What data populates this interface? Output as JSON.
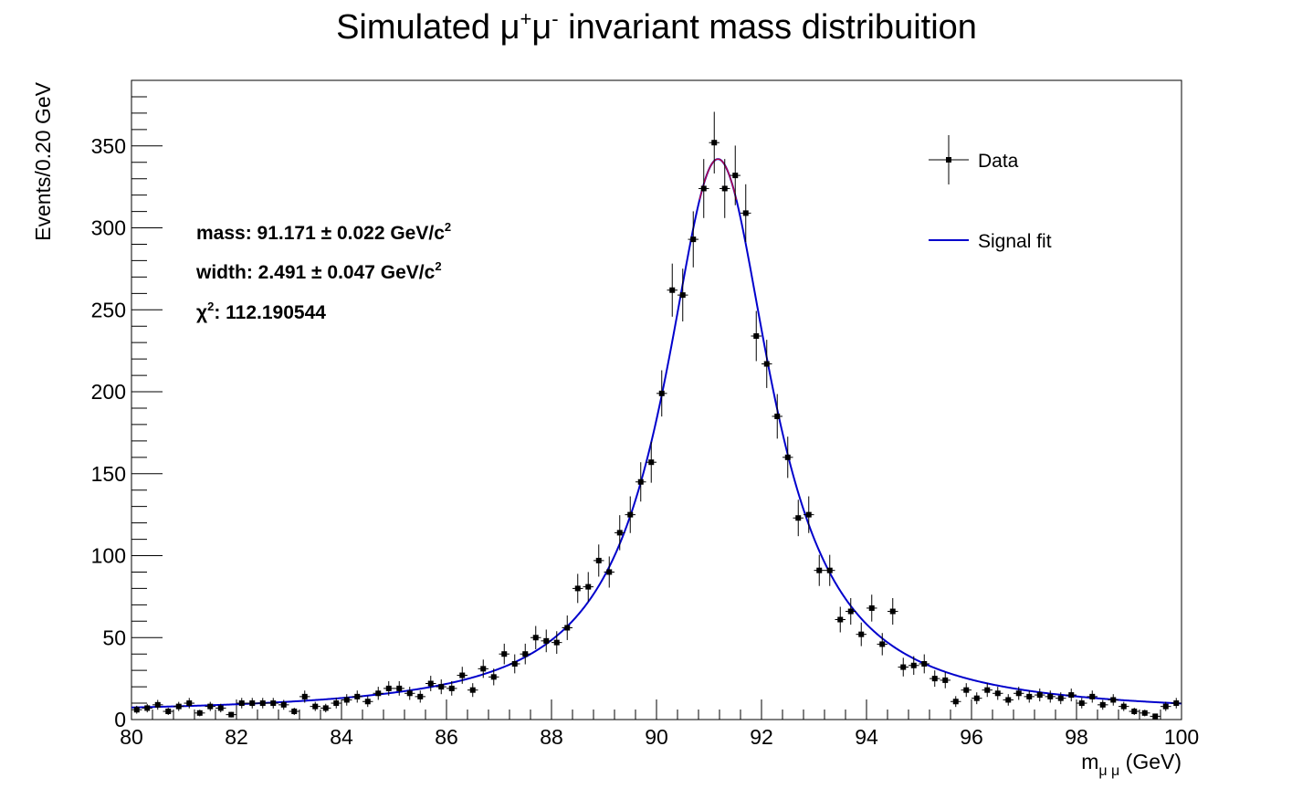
{
  "chart_data": {
    "type": "scatter",
    "title": {
      "main": "Simulated μ",
      "sup1": "+",
      "mid": "μ",
      "sup2": "-",
      "end": " invariant mass distribuition"
    },
    "xlabel": {
      "main": "m",
      "sub": "μ μ",
      "unit": " (GeV)"
    },
    "ylabel": "Events/0.20 GeV",
    "xlim": [
      80,
      100
    ],
    "ylim": [
      0,
      390
    ],
    "x_ticks": [
      "80",
      "82",
      "84",
      "86",
      "88",
      "90",
      "92",
      "94",
      "96",
      "98",
      "100"
    ],
    "y_ticks": [
      "0",
      "50",
      "100",
      "150",
      "200",
      "250",
      "300",
      "350"
    ],
    "grid": false,
    "legend_position": "top-right",
    "legend": {
      "data_label": "Data",
      "fit_label": "Signal fit"
    },
    "stats": {
      "mass_label": "mass: 91.171 ± 0.022 GeV/c",
      "mass_sup": "2",
      "width_label": "width: 2.491 ± 0.047 GeV/c",
      "width_sup": "2",
      "chi_label": "χ",
      "chi_sup": "2",
      "chi_value": ": 112.190544"
    },
    "colors": {
      "data": "#000000",
      "fit": "#0000cc",
      "fit_peak": "#cc0033",
      "frame": "#000000"
    },
    "series": [
      {
        "name": "Data",
        "kind": "points_with_errors",
        "bin_width": 0.2,
        "x": [
          80.1,
          80.3,
          80.5,
          80.7,
          80.9,
          81.1,
          81.3,
          81.5,
          81.7,
          81.9,
          82.1,
          82.3,
          82.5,
          82.7,
          82.9,
          83.1,
          83.3,
          83.5,
          83.7,
          83.9,
          84.1,
          84.3,
          84.5,
          84.7,
          84.9,
          85.1,
          85.3,
          85.5,
          85.7,
          85.9,
          86.1,
          86.3,
          86.5,
          86.7,
          86.9,
          87.1,
          87.3,
          87.5,
          87.7,
          87.9,
          88.1,
          88.3,
          88.5,
          88.7,
          88.9,
          89.1,
          89.3,
          89.5,
          89.7,
          89.9,
          90.1,
          90.3,
          90.5,
          90.7,
          90.9,
          91.1,
          91.3,
          91.5,
          91.7,
          91.9,
          92.1,
          92.3,
          92.5,
          92.7,
          92.9,
          93.1,
          93.3,
          93.5,
          93.7,
          93.9,
          94.1,
          94.3,
          94.5,
          94.7,
          94.9,
          95.1,
          95.3,
          95.5,
          95.7,
          95.9,
          96.1,
          96.3,
          96.5,
          96.7,
          96.9,
          97.1,
          97.3,
          97.5,
          97.7,
          97.9,
          98.1,
          98.3,
          98.5,
          98.7,
          98.9,
          99.1,
          99.3,
          99.5,
          99.7,
          99.9
        ],
        "y": [
          6,
          7,
          9,
          5,
          8,
          10,
          4,
          8,
          7,
          3,
          10,
          10,
          10,
          10,
          9,
          5,
          14,
          8,
          7,
          10,
          12,
          14,
          11,
          16,
          19,
          19,
          16,
          14,
          22,
          20,
          19,
          27,
          18,
          31,
          26,
          40,
          34,
          40,
          50,
          48,
          47,
          56,
          80,
          81,
          97,
          90,
          114,
          125,
          145,
          157,
          199,
          262,
          259,
          293,
          324,
          352,
          324,
          332,
          309,
          234,
          217,
          185,
          160,
          123,
          125,
          91,
          91,
          61,
          66,
          52,
          68,
          46,
          66,
          32,
          33,
          34,
          25,
          24,
          11,
          18,
          13,
          18,
          16,
          12,
          16,
          14,
          15,
          14,
          13,
          15,
          10,
          14,
          9,
          12,
          8,
          5,
          4,
          2,
          8,
          10
        ],
        "yerr": [
          2.4,
          2.6,
          3,
          2.2,
          2.8,
          3.2,
          2,
          2.8,
          2.6,
          1.7,
          3.2,
          3.2,
          3.2,
          3.2,
          3,
          2.2,
          3.7,
          2.8,
          2.6,
          3.2,
          3.5,
          3.7,
          3.3,
          4,
          4.4,
          4.4,
          4,
          3.7,
          4.7,
          4.5,
          4.4,
          5.2,
          4.2,
          5.6,
          5.1,
          6.3,
          5.8,
          6.3,
          7.1,
          6.9,
          6.9,
          7.5,
          8.9,
          9,
          9.8,
          9.5,
          10.7,
          11.2,
          12,
          12.5,
          14.1,
          16.2,
          16.1,
          17.1,
          18,
          18.8,
          18,
          18.2,
          17.6,
          15.3,
          14.7,
          13.6,
          12.6,
          11.1,
          11.2,
          9.5,
          9.5,
          7.8,
          8.1,
          7.2,
          8.2,
          6.8,
          8.1,
          5.7,
          5.7,
          5.8,
          5,
          4.9,
          3.3,
          4.2,
          3.6,
          4.2,
          4,
          3.5,
          4,
          3.7,
          3.9,
          3.7,
          3.6,
          3.9,
          3.2,
          3.7,
          3,
          3.5,
          2.8,
          2.2,
          2,
          1.4,
          2.8,
          3.2
        ]
      },
      {
        "name": "Signal fit",
        "kind": "breit_wigner_curve",
        "mass": 91.171,
        "width": 2.491,
        "peak": 342,
        "background": 3.2,
        "x_range": [
          80,
          100
        ]
      }
    ]
  }
}
